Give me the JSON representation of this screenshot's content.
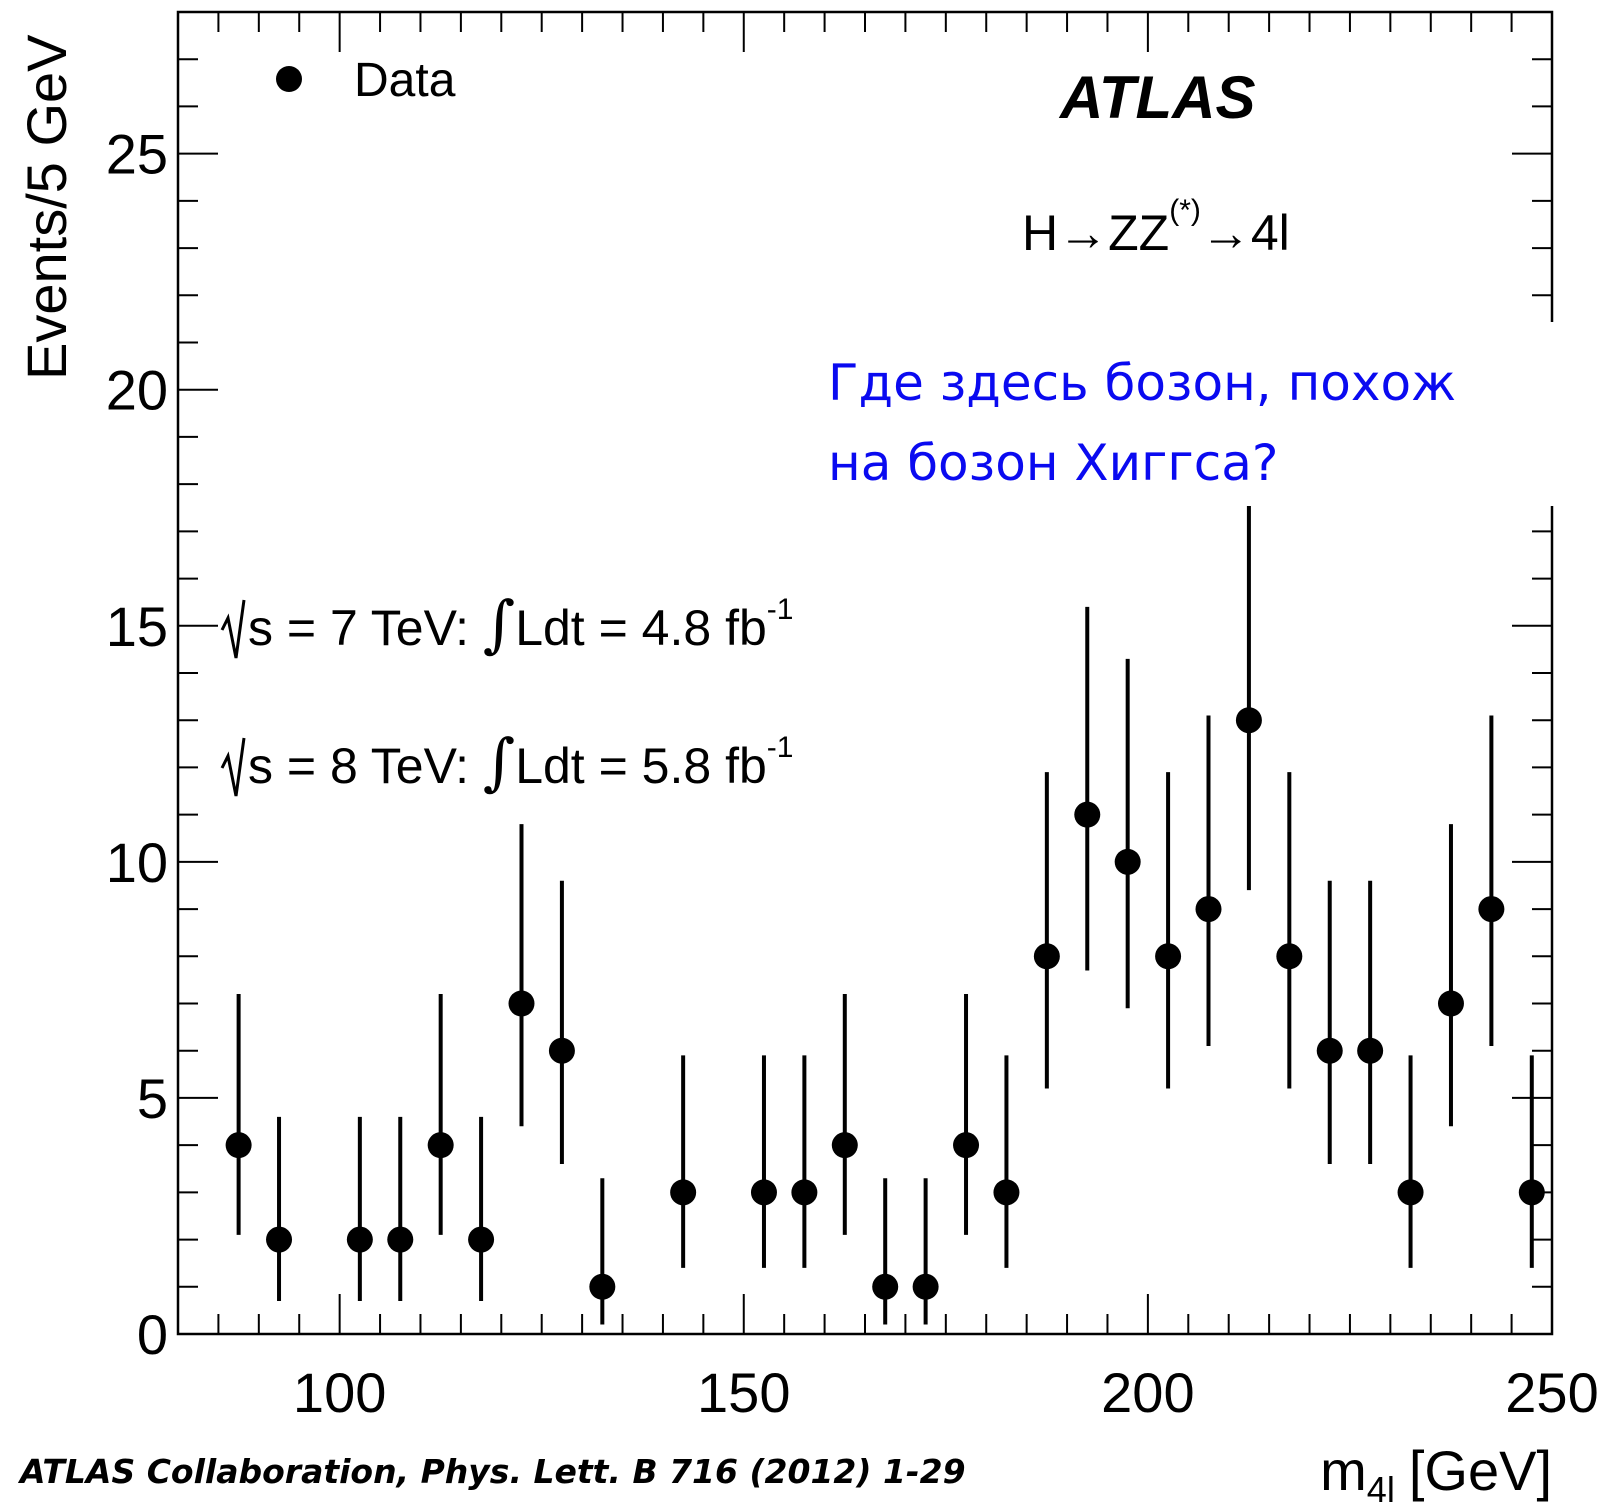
{
  "chart_data": {
    "type": "scatter",
    "title": "",
    "xlabel": "m",
    "xlabel_sub": "4l",
    "xlabel_unit": "[GeV]",
    "ylabel": "Events/5 GeV",
    "xlim": [
      80,
      250
    ],
    "ylim": [
      0,
      28
    ],
    "x_major_ticks": [
      100,
      150,
      200,
      250
    ],
    "y_major_ticks": [
      0,
      5,
      10,
      15,
      20,
      25
    ],
    "legend": {
      "position": "top-left",
      "entries": [
        "Data"
      ]
    },
    "grid": false,
    "series": [
      {
        "name": "Data",
        "marker": "filled-circle",
        "color": "#000000",
        "x": [
          87.5,
          92.5,
          102.5,
          107.5,
          112.5,
          117.5,
          122.5,
          127.5,
          132.5,
          142.5,
          152.5,
          157.5,
          162.5,
          167.5,
          172.5,
          177.5,
          182.5,
          187.5,
          192.5,
          197.5,
          202.5,
          207.5,
          212.5,
          217.5,
          222.5,
          227.5,
          232.5,
          237.5,
          242.5,
          247.5
        ],
        "y": [
          4,
          2,
          2,
          2,
          4,
          2,
          7,
          6,
          1,
          3,
          3,
          3,
          4,
          1,
          1,
          4,
          3,
          8,
          11,
          10,
          8,
          9,
          13,
          8,
          6,
          6,
          3,
          7,
          9,
          3
        ],
        "err_low": [
          1.9,
          1.3,
          1.3,
          1.3,
          1.9,
          1.3,
          2.6,
          2.4,
          0.8,
          1.6,
          1.6,
          1.6,
          1.9,
          0.8,
          0.8,
          1.9,
          1.6,
          2.8,
          3.3,
          3.1,
          2.8,
          2.9,
          3.6,
          2.8,
          2.4,
          2.4,
          1.6,
          2.6,
          2.9,
          1.6
        ],
        "err_high": [
          3.2,
          2.6,
          2.6,
          2.6,
          3.2,
          2.6,
          3.8,
          3.6,
          2.3,
          2.9,
          2.9,
          2.9,
          3.2,
          2.3,
          2.3,
          3.2,
          2.9,
          3.9,
          4.4,
          4.3,
          3.9,
          4.1,
          4.7,
          3.9,
          3.6,
          3.6,
          2.9,
          3.8,
          4.1,
          2.9
        ]
      }
    ],
    "annotations": {
      "experiment": "ATLAS",
      "process_main": "H→ZZ",
      "process_sup": "(*)",
      "process_tail": "→4l",
      "lumi_line1": {
        "prefix": "s = 7 TeV: ",
        "lumi": "Ldt = 4.8 fb",
        "sup": "-1"
      },
      "lumi_line2": {
        "prefix": "s = 8 TeV: ",
        "lumi": "Ldt = 5.8 fb",
        "sup": "-1"
      }
    }
  },
  "overlay": {
    "question_line1": "Где здесь бозон, похож",
    "question_line2": "на бозон Хиггса?",
    "question_color": "#0a0af0"
  },
  "citation": "ATLAS Collaboration, Phys. Lett. B 716 (2012) 1-29"
}
